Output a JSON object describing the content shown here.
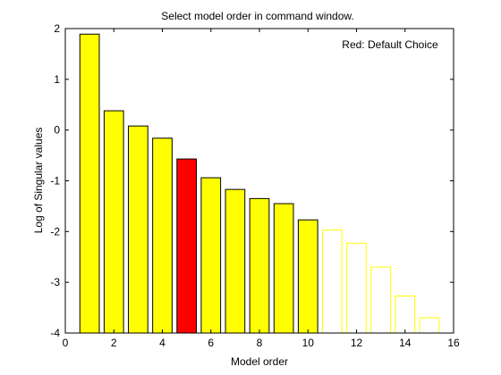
{
  "chart_data": {
    "type": "bar",
    "title": "Select model order in command window.",
    "xlabel": "Model order",
    "ylabel": "Log of Singular values",
    "annotation": "Red: Default Choice",
    "xlim": [
      0,
      16
    ],
    "ylim": [
      -4,
      2
    ],
    "xticks": [
      "0",
      "2",
      "4",
      "6",
      "8",
      "10",
      "12",
      "14",
      "16"
    ],
    "yticks": [
      "-4",
      "-3",
      "-2",
      "-1",
      "0",
      "1",
      "2"
    ],
    "grid": false,
    "x": [
      1,
      2,
      3,
      4,
      5,
      6,
      7,
      8,
      9,
      10,
      11,
      12,
      13,
      14,
      15
    ],
    "values": [
      1.89,
      0.38,
      0.08,
      -0.16,
      -0.57,
      -0.94,
      -1.17,
      -1.35,
      -1.45,
      -1.77,
      -1.97,
      -2.23,
      -2.7,
      -3.27,
      -3.7
    ],
    "default_choice": 5,
    "bar_styles": [
      "filled",
      "filled",
      "filled",
      "filled",
      "filled",
      "filled",
      "filled",
      "filled",
      "filled",
      "filled",
      "outline",
      "outline",
      "outline",
      "outline",
      "outline"
    ],
    "colors": {
      "bar": "#ffff00",
      "selected": "#ff0000",
      "edge": "#000000",
      "outline": "#ffff00",
      "axes": "#000000",
      "background": "#ffffff"
    }
  }
}
